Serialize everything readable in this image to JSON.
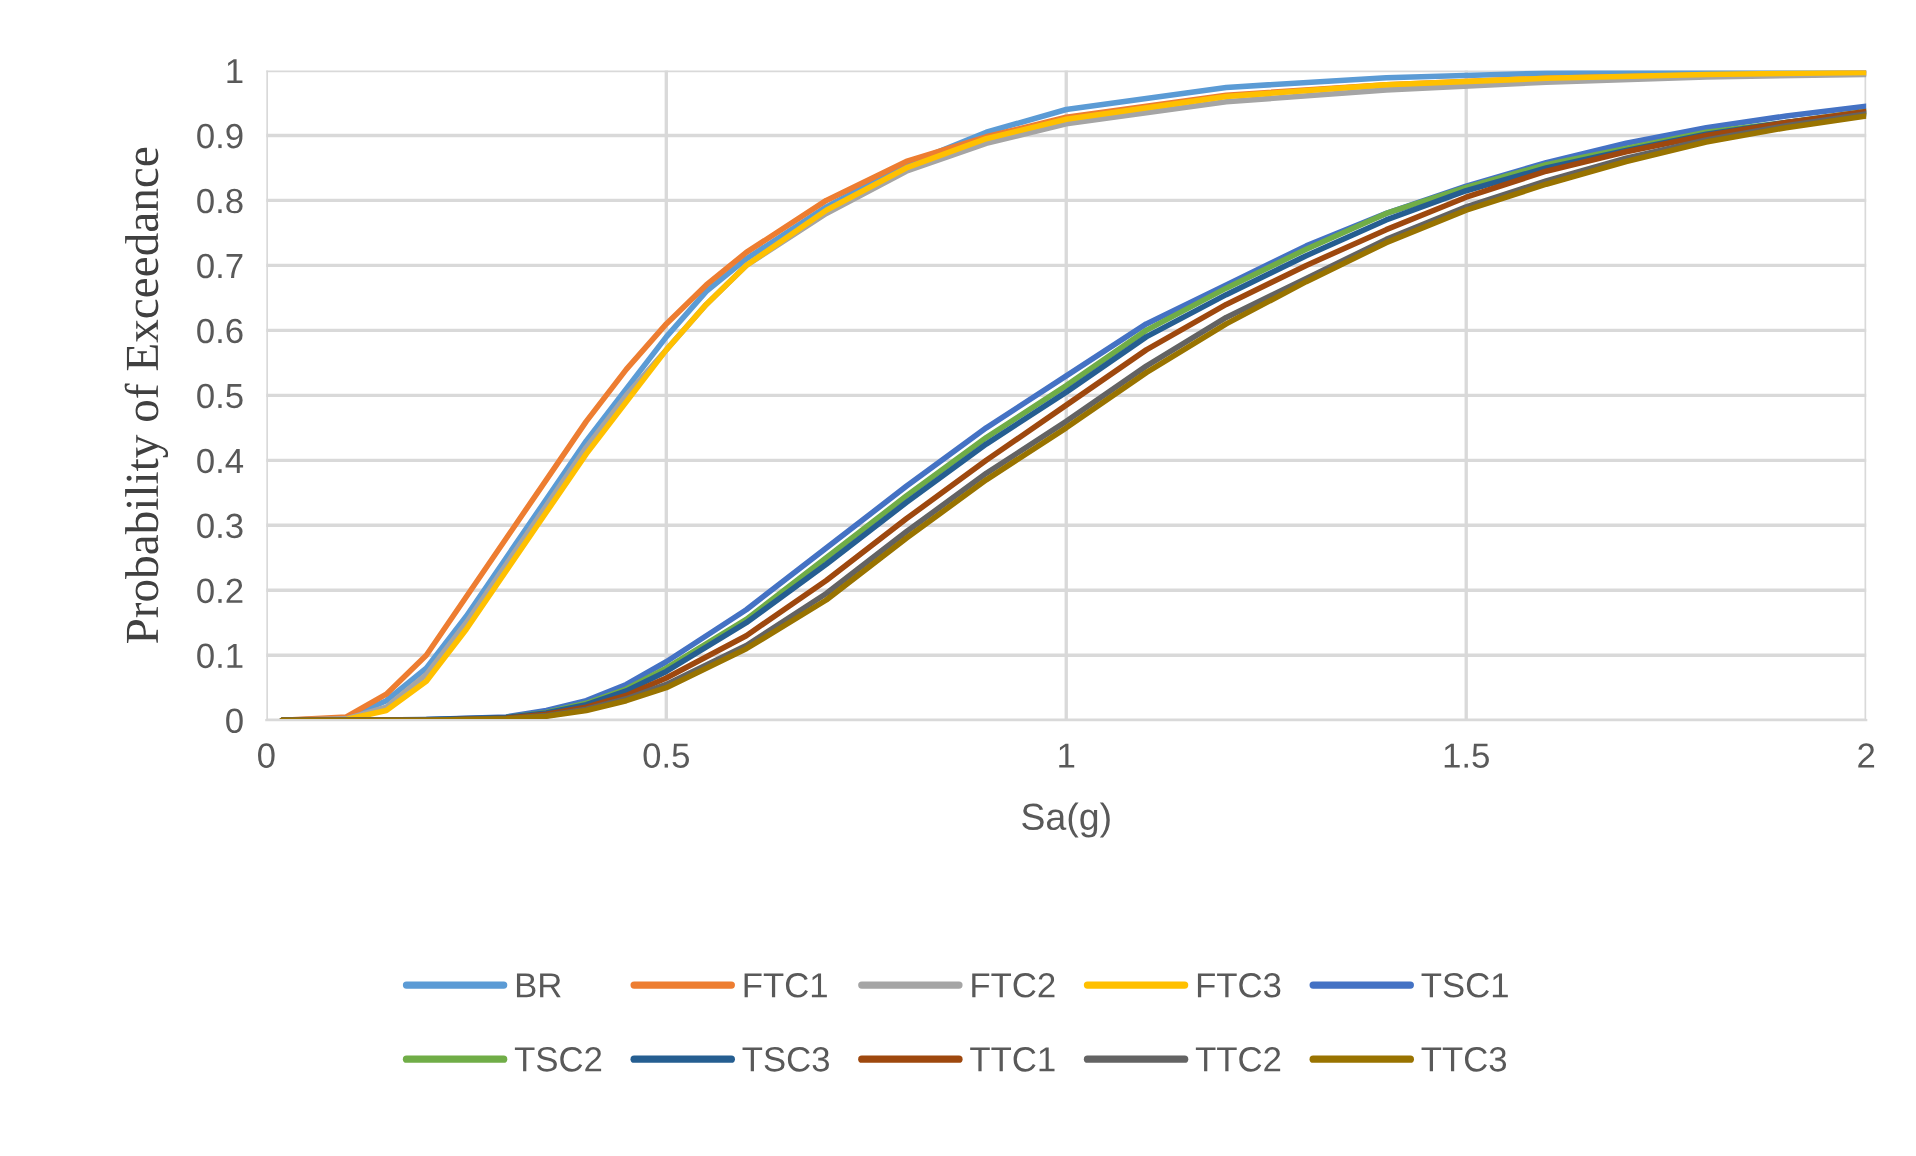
{
  "chart_data": {
    "type": "line",
    "xlabel": "Sa(g)",
    "ylabel": "Probability of Exceedance",
    "xlim": [
      0,
      2
    ],
    "xticks": [
      0,
      0.5,
      1,
      1.5,
      2
    ],
    "ylim": [
      0,
      1
    ],
    "yticks": [
      0,
      0.1,
      0.2,
      0.3,
      0.4,
      0.5,
      0.6,
      0.7,
      0.8,
      0.9,
      1
    ],
    "grid": true,
    "legend": "bottom",
    "marker": "none",
    "line_style": "solid",
    "series": [
      {
        "name": "BR",
        "color": "#5b9bd5",
        "x": [
          0.02,
          0.1,
          0.15,
          0.2,
          0.25,
          0.3,
          0.35,
          0.4,
          0.45,
          0.5,
          0.55,
          0.6,
          0.7,
          0.8,
          0.9,
          1.0,
          1.2,
          1.4,
          1.6,
          1.8,
          2.0
        ],
        "values": [
          0,
          0.003,
          0.03,
          0.08,
          0.16,
          0.25,
          0.34,
          0.43,
          0.51,
          0.59,
          0.66,
          0.71,
          0.79,
          0.855,
          0.905,
          0.94,
          0.974,
          0.989,
          0.996,
          0.999,
          1
        ]
      },
      {
        "name": "FTC1",
        "color": "#ed7d31",
        "x": [
          0.02,
          0.1,
          0.15,
          0.2,
          0.25,
          0.3,
          0.35,
          0.4,
          0.45,
          0.5,
          0.55,
          0.6,
          0.7,
          0.8,
          0.9,
          1.0,
          1.2,
          1.4,
          1.6,
          1.8,
          2.0
        ],
        "values": [
          0,
          0.005,
          0.04,
          0.1,
          0.19,
          0.28,
          0.37,
          0.46,
          0.54,
          0.61,
          0.67,
          0.72,
          0.8,
          0.86,
          0.898,
          0.928,
          0.962,
          0.978,
          0.988,
          0.993,
          0.996
        ]
      },
      {
        "name": "FTC2",
        "color": "#a5a5a5",
        "x": [
          0.02,
          0.1,
          0.15,
          0.2,
          0.25,
          0.3,
          0.35,
          0.4,
          0.45,
          0.5,
          0.55,
          0.6,
          0.7,
          0.8,
          0.9,
          1.0,
          1.2,
          1.4,
          1.6,
          1.8,
          2.0
        ],
        "values": [
          0,
          0.002,
          0.02,
          0.07,
          0.15,
          0.24,
          0.33,
          0.42,
          0.5,
          0.57,
          0.64,
          0.7,
          0.78,
          0.845,
          0.888,
          0.918,
          0.952,
          0.97,
          0.982,
          0.99,
          0.994
        ]
      },
      {
        "name": "FTC3",
        "color": "#ffc000",
        "x": [
          0.02,
          0.1,
          0.15,
          0.2,
          0.25,
          0.3,
          0.35,
          0.4,
          0.45,
          0.5,
          0.55,
          0.6,
          0.7,
          0.8,
          0.9,
          1.0,
          1.2,
          1.4,
          1.6,
          1.8,
          2.0
        ],
        "values": [
          0,
          0.001,
          0.015,
          0.06,
          0.14,
          0.23,
          0.32,
          0.41,
          0.49,
          0.57,
          0.64,
          0.7,
          0.785,
          0.85,
          0.895,
          0.925,
          0.96,
          0.978,
          0.988,
          0.994,
          0.997
        ]
      },
      {
        "name": "TSC1",
        "color": "#4472c4",
        "x": [
          0.02,
          0.1,
          0.2,
          0.3,
          0.35,
          0.4,
          0.45,
          0.5,
          0.6,
          0.7,
          0.8,
          0.9,
          1.0,
          1.1,
          1.2,
          1.3,
          1.4,
          1.5,
          1.6,
          1.7,
          1.8,
          1.9,
          2.0
        ],
        "values": [
          0,
          0,
          0.001,
          0.005,
          0.015,
          0.03,
          0.055,
          0.09,
          0.17,
          0.265,
          0.36,
          0.45,
          0.53,
          0.61,
          0.67,
          0.73,
          0.78,
          0.822,
          0.858,
          0.888,
          0.912,
          0.93,
          0.945
        ]
      },
      {
        "name": "TSC2",
        "color": "#70ad47",
        "x": [
          0.3,
          0.35,
          0.4,
          0.45,
          0.5,
          0.6,
          0.7,
          0.8,
          0.9,
          1.0,
          1.1,
          1.2,
          1.3,
          1.4,
          1.5,
          1.6,
          1.7,
          1.8,
          1.9,
          2.0
        ],
        "values": [
          0.004,
          0.012,
          0.026,
          0.048,
          0.08,
          0.155,
          0.25,
          0.345,
          0.435,
          0.515,
          0.6,
          0.665,
          0.725,
          0.78,
          0.82,
          0.855,
          0.88,
          0.905,
          0.92,
          0.937
        ]
      },
      {
        "name": "TSC3",
        "color": "#255e91",
        "x": [
          0.02,
          0.1,
          0.2,
          0.3,
          0.35,
          0.4,
          0.45,
          0.5,
          0.6,
          0.7,
          0.8,
          0.9,
          1.0,
          1.1,
          1.2,
          1.3,
          1.4,
          1.5,
          1.6,
          1.7,
          1.8,
          1.9,
          2.0
        ],
        "values": [
          0,
          0,
          0.001,
          0.004,
          0.011,
          0.024,
          0.045,
          0.075,
          0.15,
          0.24,
          0.335,
          0.425,
          0.505,
          0.59,
          0.655,
          0.715,
          0.77,
          0.815,
          0.85,
          0.877,
          0.902,
          0.92,
          0.935
        ]
      },
      {
        "name": "TTC1",
        "color": "#9e480e",
        "x": [
          0.02,
          0.1,
          0.2,
          0.3,
          0.35,
          0.4,
          0.45,
          0.5,
          0.6,
          0.7,
          0.8,
          0.9,
          1.0,
          1.1,
          1.2,
          1.3,
          1.4,
          1.5,
          1.6,
          1.7,
          1.8,
          1.9,
          2.0
        ],
        "values": [
          0,
          0,
          0,
          0.003,
          0.009,
          0.02,
          0.038,
          0.065,
          0.13,
          0.215,
          0.31,
          0.4,
          0.485,
          0.57,
          0.64,
          0.7,
          0.755,
          0.805,
          0.845,
          0.875,
          0.9,
          0.92,
          0.937
        ]
      },
      {
        "name": "TTC2",
        "color": "#636363",
        "x": [
          0.02,
          0.1,
          0.2,
          0.3,
          0.35,
          0.4,
          0.45,
          0.5,
          0.6,
          0.7,
          0.8,
          0.9,
          1.0,
          1.1,
          1.2,
          1.3,
          1.4,
          1.5,
          1.6,
          1.7,
          1.8,
          1.9,
          2.0
        ],
        "values": [
          0,
          0,
          0,
          0.002,
          0.007,
          0.017,
          0.033,
          0.055,
          0.115,
          0.195,
          0.29,
          0.38,
          0.46,
          0.545,
          0.62,
          0.68,
          0.74,
          0.79,
          0.83,
          0.865,
          0.893,
          0.915,
          0.933
        ]
      },
      {
        "name": "TTC3",
        "color": "#997300",
        "x": [
          0.02,
          0.1,
          0.2,
          0.3,
          0.35,
          0.4,
          0.45,
          0.5,
          0.6,
          0.7,
          0.8,
          0.9,
          1.0,
          1.1,
          1.2,
          1.3,
          1.4,
          1.5,
          1.6,
          1.7,
          1.8,
          1.9,
          2.0
        ],
        "values": [
          0,
          0,
          0,
          0.002,
          0.006,
          0.015,
          0.03,
          0.05,
          0.11,
          0.185,
          0.28,
          0.37,
          0.45,
          0.535,
          0.61,
          0.675,
          0.735,
          0.785,
          0.825,
          0.86,
          0.89,
          0.912,
          0.93
        ]
      }
    ]
  }
}
